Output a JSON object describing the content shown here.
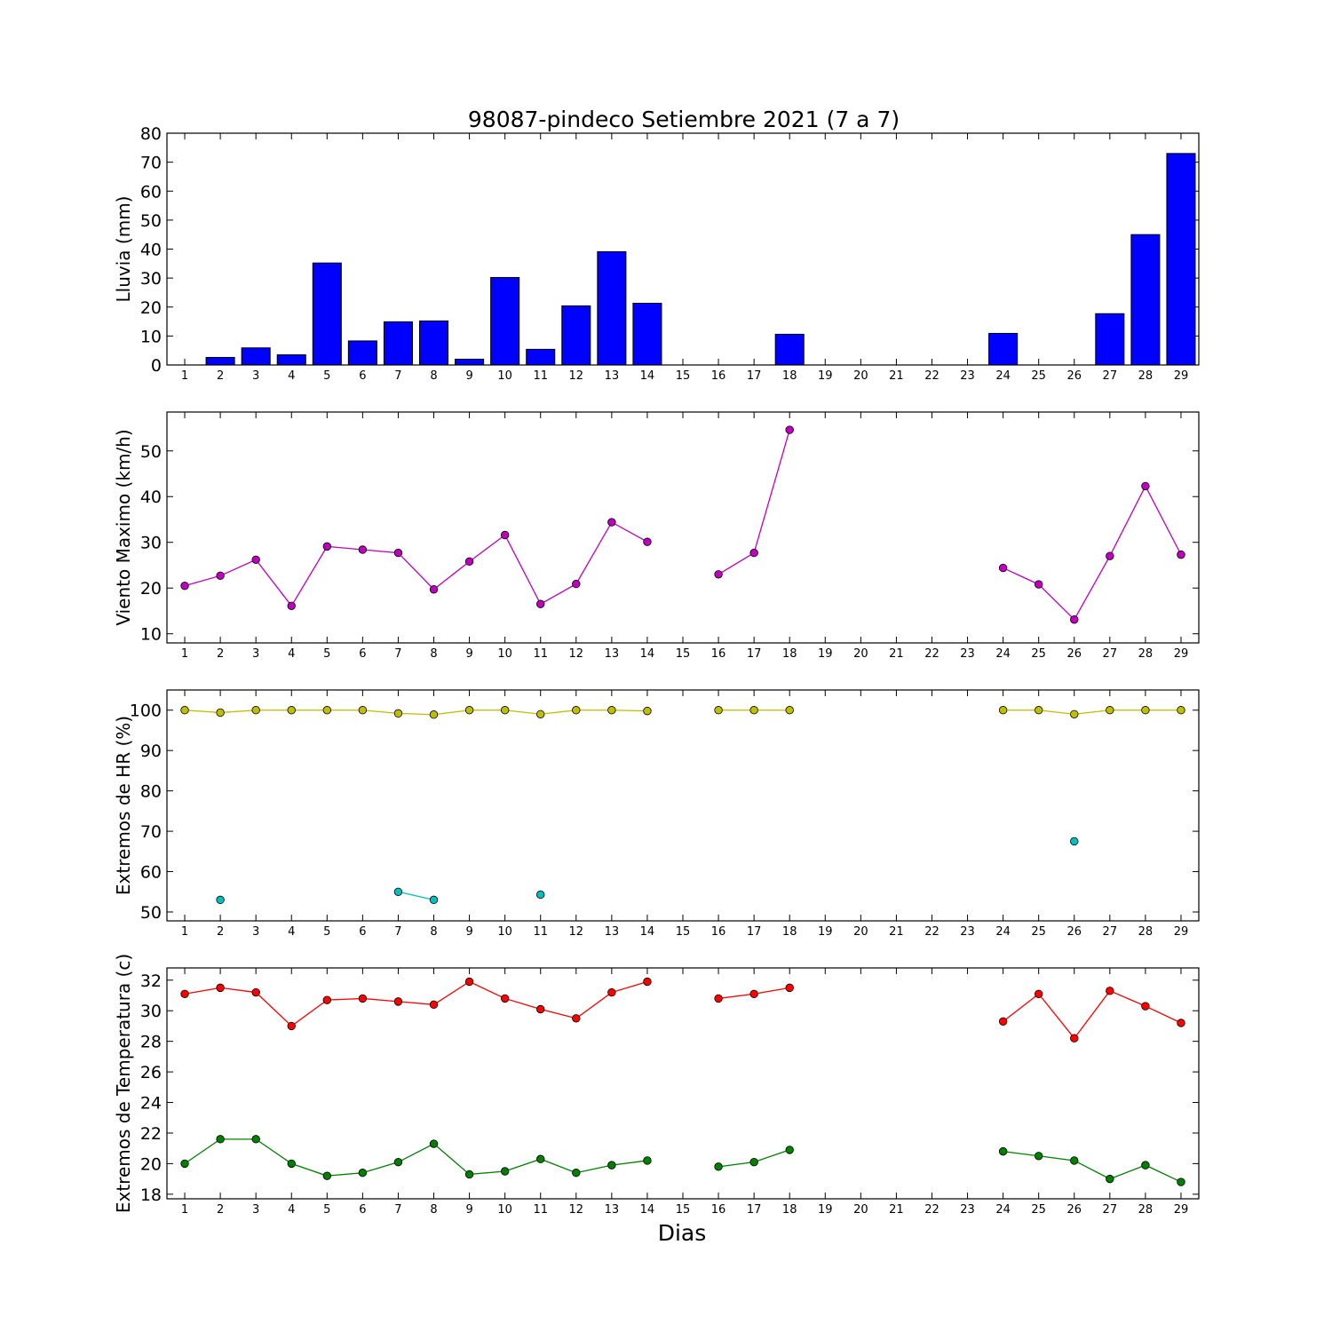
{
  "title": "98087-pindeco Setiembre 2021  (7 a 7)",
  "xlabel": "Dias",
  "chart_data": [
    {
      "type": "bar",
      "ylabel": "Lluvia (mm)",
      "ylim": [
        0,
        80
      ],
      "yticks": [
        0,
        10,
        20,
        30,
        40,
        50,
        60,
        70,
        80
      ],
      "x": [
        1,
        2,
        3,
        4,
        5,
        6,
        7,
        8,
        9,
        10,
        11,
        12,
        13,
        14,
        15,
        16,
        17,
        18,
        19,
        20,
        21,
        22,
        23,
        24,
        25,
        26,
        27,
        28,
        29
      ],
      "xticks": [
        1,
        2,
        3,
        4,
        5,
        6,
        7,
        8,
        9,
        10,
        11,
        12,
        13,
        14,
        15,
        16,
        17,
        18,
        19,
        20,
        21,
        22,
        23,
        24,
        25,
        26,
        27,
        28,
        29
      ],
      "series": [
        {
          "color": "#0000ff",
          "values": [
            0,
            2.6,
            5.9,
            3.5,
            35.2,
            8.3,
            14.9,
            15.2,
            2.0,
            30.2,
            5.4,
            20.4,
            39.1,
            21.3,
            0,
            0,
            0,
            10.6,
            0,
            0,
            0,
            0,
            0,
            10.9,
            0,
            0,
            17.7,
            45.0,
            73.0
          ]
        }
      ],
      "grid": false
    },
    {
      "type": "line",
      "ylabel": "Viento Maximo (km/h)",
      "ylim": [
        8,
        58.5
      ],
      "yticks": [
        10,
        20,
        30,
        40,
        50
      ],
      "x": [
        1,
        2,
        3,
        4,
        5,
        6,
        7,
        8,
        9,
        10,
        11,
        12,
        13,
        14,
        15,
        16,
        17,
        18,
        19,
        20,
        21,
        22,
        23,
        24,
        25,
        26,
        27,
        28,
        29
      ],
      "xticks": [
        1,
        2,
        3,
        4,
        5,
        6,
        7,
        8,
        9,
        10,
        11,
        12,
        13,
        14,
        15,
        16,
        17,
        18,
        19,
        20,
        21,
        22,
        23,
        24,
        25,
        26,
        27,
        28,
        29
      ],
      "series": [
        {
          "color": "#bf00bf",
          "values": [
            20.5,
            22.7,
            26.2,
            16.1,
            29.1,
            28.4,
            27.7,
            19.7,
            25.8,
            31.6,
            16.5,
            20.9,
            34.4,
            30.1,
            null,
            23.0,
            27.7,
            54.6,
            null,
            null,
            null,
            null,
            null,
            24.4,
            20.8,
            13.1,
            27.0,
            42.3,
            27.3
          ]
        }
      ],
      "grid": false
    },
    {
      "type": "line",
      "ylabel": "Extremos de HR (%)",
      "ylim": [
        47.8,
        105
      ],
      "yticks": [
        50,
        60,
        70,
        80,
        90,
        100
      ],
      "x": [
        1,
        2,
        3,
        4,
        5,
        6,
        7,
        8,
        9,
        10,
        11,
        12,
        13,
        14,
        15,
        16,
        17,
        18,
        19,
        20,
        21,
        22,
        23,
        24,
        25,
        26,
        27,
        28,
        29
      ],
      "xticks": [
        1,
        2,
        3,
        4,
        5,
        6,
        7,
        8,
        9,
        10,
        11,
        12,
        13,
        14,
        15,
        16,
        17,
        18,
        19,
        20,
        21,
        22,
        23,
        24,
        25,
        26,
        27,
        28,
        29
      ],
      "series": [
        {
          "color": "#bfbf00",
          "values": [
            100,
            99.4,
            100,
            100,
            100,
            100,
            99.2,
            98.9,
            100,
            100,
            99.0,
            100,
            100,
            99.8,
            null,
            100,
            100,
            100,
            null,
            null,
            null,
            null,
            null,
            100,
            100,
            99.0,
            100,
            100,
            100
          ]
        },
        {
          "color": "#00bfbf",
          "values": [
            null,
            53.0,
            null,
            null,
            null,
            null,
            55.0,
            53.0,
            null,
            null,
            54.3,
            null,
            null,
            null,
            null,
            null,
            null,
            null,
            null,
            null,
            null,
            null,
            null,
            null,
            null,
            67.5,
            null,
            null,
            null
          ]
        }
      ],
      "grid": false
    },
    {
      "type": "line",
      "ylabel": "Extremos de Temperatura (c)",
      "ylim": [
        17.7,
        32.8
      ],
      "yticks": [
        18,
        20,
        22,
        24,
        26,
        28,
        30,
        32
      ],
      "x": [
        1,
        2,
        3,
        4,
        5,
        6,
        7,
        8,
        9,
        10,
        11,
        12,
        13,
        14,
        15,
        16,
        17,
        18,
        19,
        20,
        21,
        22,
        23,
        24,
        25,
        26,
        27,
        28,
        29
      ],
      "xticks": [
        1,
        2,
        3,
        4,
        5,
        6,
        7,
        8,
        9,
        10,
        11,
        12,
        13,
        14,
        15,
        16,
        17,
        18,
        19,
        20,
        21,
        22,
        23,
        24,
        25,
        26,
        27,
        28,
        29
      ],
      "series": [
        {
          "color": "#ff0000",
          "values": [
            31.1,
            31.5,
            31.2,
            29.0,
            30.7,
            30.8,
            30.6,
            30.4,
            31.9,
            30.8,
            30.1,
            29.5,
            31.2,
            31.9,
            null,
            30.8,
            31.1,
            31.5,
            null,
            null,
            null,
            null,
            null,
            29.3,
            31.1,
            28.2,
            31.3,
            30.3,
            29.2
          ]
        },
        {
          "color": "#008000",
          "values": [
            20.0,
            21.6,
            21.6,
            20.0,
            19.2,
            19.4,
            20.1,
            21.3,
            19.3,
            19.5,
            20.3,
            19.4,
            19.9,
            20.2,
            null,
            19.8,
            20.1,
            20.9,
            null,
            null,
            null,
            null,
            null,
            20.8,
            20.5,
            20.2,
            19.0,
            19.9,
            18.8
          ]
        }
      ],
      "grid": false
    }
  ]
}
